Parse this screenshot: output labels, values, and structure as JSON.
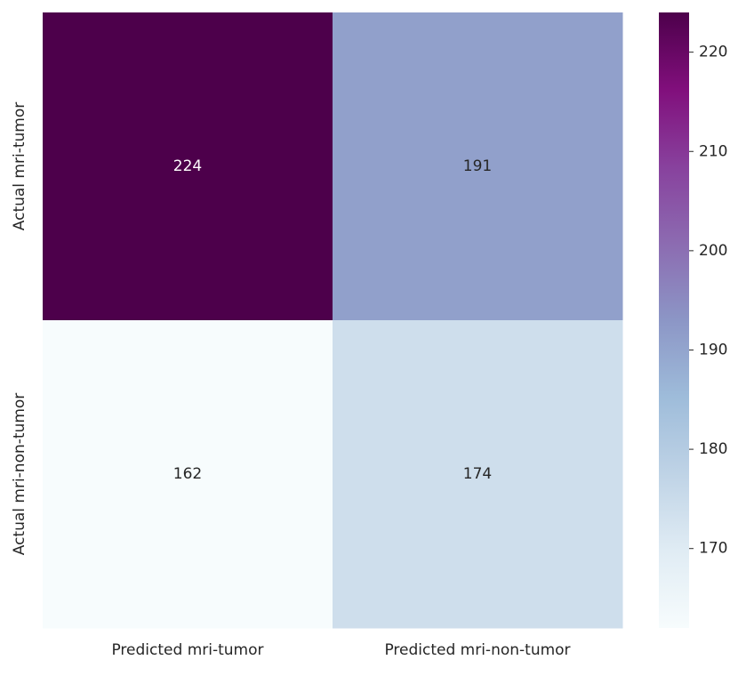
{
  "chart_data": {
    "type": "heatmap",
    "x_categories": [
      "Predicted mri-tumor",
      "Predicted mri-non-tumor"
    ],
    "y_categories": [
      "Actual mri-tumor",
      "Actual mri-non-tumor"
    ],
    "values": [
      [
        224,
        191
      ],
      [
        162,
        174
      ]
    ],
    "colormap": "BuPu",
    "clim": [
      162,
      224
    ],
    "cticks": [
      170,
      180,
      190,
      200,
      210,
      220
    ]
  }
}
